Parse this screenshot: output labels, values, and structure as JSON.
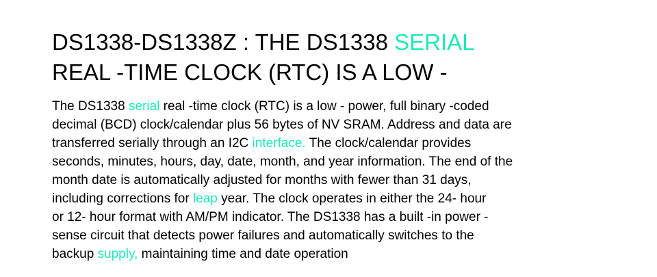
{
  "colors": {
    "text": "#000000",
    "highlight": "#1de9b6",
    "background": "#ffffff"
  },
  "title": {
    "line1_a": "DS1338-DS1338Z : THE DS1338 ",
    "line1_b": "SERIAL",
    "line2": "REAL -TIME CLOCK (RTC) IS A LOW -"
  },
  "body": {
    "l1_a": "The DS1338 ",
    "l1_b": "serial",
    "l1_c": " real -time clock (RTC) is a low - power, full binary -coded",
    "l2": "decimal (BCD) clock/calendar plus 56 bytes of NV SRAM. Address and data are",
    "l3_a": "transferred serially through an I2C ",
    "l3_b": "interface.",
    "l3_c": " The clock/calendar provides",
    "l4": "seconds, minutes, hours, day, date, month, and year information. The end of the",
    "l5": "month date is automatically adjusted for months with fewer than 31 days,",
    "l6_a": "including corrections for ",
    "l6_b": "leap",
    "l6_c": " year. The clock operates in either the 24- hour",
    "l7": "or 12- hour format with AM/PM indicator. The DS1338 has a built -in power -",
    "l8": "sense circuit that detects power failures and automatically switches to the",
    "l9_a": "backup ",
    "l9_b": "supply,",
    "l9_c": " maintaining time and date operation"
  }
}
